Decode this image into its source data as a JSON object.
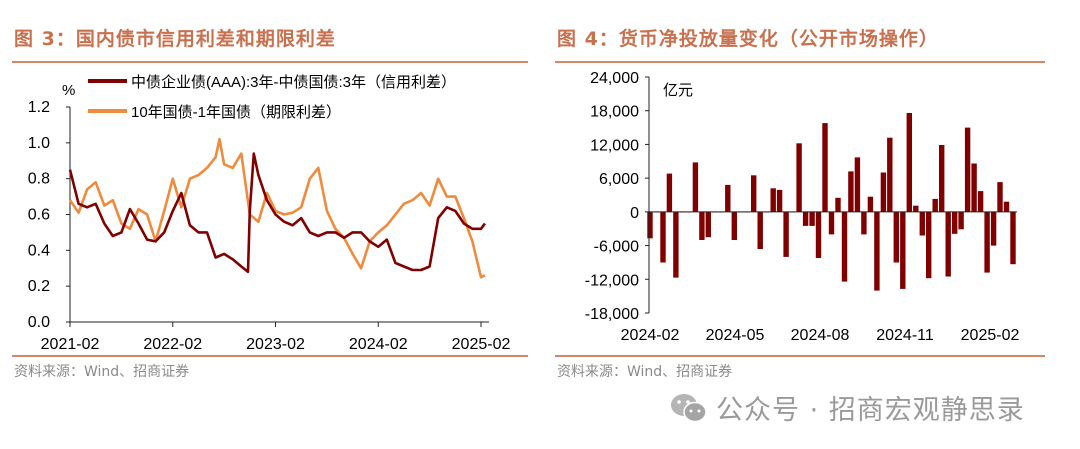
{
  "left": {
    "title": "图 3：国内债市信用利差和期限利差",
    "source": "资料来源：Wind、招商证券"
  },
  "right": {
    "title": "图 4：货币净投放量变化（公开市场操作）",
    "source": "资料来源：Wind、招商证券"
  },
  "watermark": {
    "icon": "wechat-icon",
    "text": "公众号 · 招商宏观静思录"
  },
  "chart_data": [
    {
      "type": "line",
      "ylabel": "%",
      "ylim": [
        0,
        1.2
      ],
      "yticks": [
        "0.0",
        "0.2",
        "0.4",
        "0.6",
        "0.8",
        "1.0",
        "1.2"
      ],
      "xticks": [
        "2021-02",
        "2022-02",
        "2023-02",
        "2024-02",
        "2025-02"
      ],
      "xlim": [
        "2021-02",
        "2025-02"
      ],
      "grid": false,
      "legend": "top",
      "series": [
        {
          "name": "中债企业债(AAA):3年-中债国债:3年（信用利差）",
          "color": "#800000",
          "points": [
            [
              "2021-02-01",
              0.85
            ],
            [
              "2021-03-01",
              0.66
            ],
            [
              "2021-04-01",
              0.64
            ],
            [
              "2021-05-01",
              0.66
            ],
            [
              "2021-06-01",
              0.55
            ],
            [
              "2021-07-01",
              0.48
            ],
            [
              "2021-08-01",
              0.5
            ],
            [
              "2021-09-01",
              0.63
            ],
            [
              "2021-10-01",
              0.55
            ],
            [
              "2021-11-01",
              0.46
            ],
            [
              "2021-12-01",
              0.45
            ],
            [
              "2022-01-01",
              0.5
            ],
            [
              "2022-02-01",
              0.62
            ],
            [
              "2022-03-01",
              0.72
            ],
            [
              "2022-04-01",
              0.54
            ],
            [
              "2022-05-01",
              0.5
            ],
            [
              "2022-06-01",
              0.5
            ],
            [
              "2022-07-01",
              0.36
            ],
            [
              "2022-08-01",
              0.38
            ],
            [
              "2022-09-01",
              0.35
            ],
            [
              "2022-10-01",
              0.31
            ],
            [
              "2022-10-25",
              0.28
            ],
            [
              "2022-11-01",
              0.62
            ],
            [
              "2022-11-15",
              0.94
            ],
            [
              "2022-12-01",
              0.82
            ],
            [
              "2023-01-01",
              0.68
            ],
            [
              "2023-02-01",
              0.6
            ],
            [
              "2023-03-01",
              0.56
            ],
            [
              "2023-04-01",
              0.54
            ],
            [
              "2023-05-01",
              0.58
            ],
            [
              "2023-06-01",
              0.5
            ],
            [
              "2023-07-01",
              0.48
            ],
            [
              "2023-08-01",
              0.5
            ],
            [
              "2023-09-01",
              0.5
            ],
            [
              "2023-10-01",
              0.47
            ],
            [
              "2023-11-01",
              0.5
            ],
            [
              "2023-12-01",
              0.5
            ],
            [
              "2024-01-01",
              0.45
            ],
            [
              "2024-02-01",
              0.42
            ],
            [
              "2024-03-01",
              0.46
            ],
            [
              "2024-04-01",
              0.33
            ],
            [
              "2024-05-01",
              0.31
            ],
            [
              "2024-06-01",
              0.29
            ],
            [
              "2024-07-01",
              0.29
            ],
            [
              "2024-08-01",
              0.31
            ],
            [
              "2024-09-01",
              0.58
            ],
            [
              "2024-10-01",
              0.64
            ],
            [
              "2024-11-01",
              0.62
            ],
            [
              "2024-12-01",
              0.55
            ],
            [
              "2025-01-01",
              0.52
            ],
            [
              "2025-02-01",
              0.52
            ],
            [
              "2025-02-15",
              0.55
            ]
          ]
        },
        {
          "name": "10年国债-1年国债（期限利差）",
          "color": "#f08a3c",
          "points": [
            [
              "2021-02-01",
              0.68
            ],
            [
              "2021-03-01",
              0.61
            ],
            [
              "2021-04-01",
              0.74
            ],
            [
              "2021-05-01",
              0.78
            ],
            [
              "2021-06-01",
              0.65
            ],
            [
              "2021-07-01",
              0.68
            ],
            [
              "2021-08-01",
              0.55
            ],
            [
              "2021-09-01",
              0.52
            ],
            [
              "2021-10-01",
              0.63
            ],
            [
              "2021-11-01",
              0.6
            ],
            [
              "2021-12-01",
              0.45
            ],
            [
              "2022-01-01",
              0.62
            ],
            [
              "2022-02-01",
              0.8
            ],
            [
              "2022-03-01",
              0.64
            ],
            [
              "2022-04-01",
              0.8
            ],
            [
              "2022-05-01",
              0.82
            ],
            [
              "2022-06-01",
              0.86
            ],
            [
              "2022-07-01",
              0.92
            ],
            [
              "2022-07-15",
              1.02
            ],
            [
              "2022-08-01",
              0.88
            ],
            [
              "2022-09-01",
              0.86
            ],
            [
              "2022-10-01",
              0.94
            ],
            [
              "2022-11-01",
              0.6
            ],
            [
              "2022-12-01",
              0.56
            ],
            [
              "2023-01-01",
              0.72
            ],
            [
              "2023-02-01",
              0.62
            ],
            [
              "2023-03-01",
              0.6
            ],
            [
              "2023-04-01",
              0.61
            ],
            [
              "2023-05-01",
              0.64
            ],
            [
              "2023-06-01",
              0.8
            ],
            [
              "2023-07-01",
              0.86
            ],
            [
              "2023-08-01",
              0.62
            ],
            [
              "2023-09-01",
              0.52
            ],
            [
              "2023-10-01",
              0.47
            ],
            [
              "2023-11-01",
              0.38
            ],
            [
              "2023-12-01",
              0.3
            ],
            [
              "2024-01-01",
              0.45
            ],
            [
              "2024-02-01",
              0.5
            ],
            [
              "2024-03-01",
              0.54
            ],
            [
              "2024-04-01",
              0.6
            ],
            [
              "2024-05-01",
              0.66
            ],
            [
              "2024-06-01",
              0.68
            ],
            [
              "2024-07-01",
              0.72
            ],
            [
              "2024-08-01",
              0.65
            ],
            [
              "2024-09-01",
              0.8
            ],
            [
              "2024-10-01",
              0.7
            ],
            [
              "2024-11-01",
              0.7
            ],
            [
              "2024-12-01",
              0.58
            ],
            [
              "2025-01-01",
              0.45
            ],
            [
              "2025-02-01",
              0.25
            ],
            [
              "2025-02-15",
              0.26
            ]
          ]
        }
      ]
    },
    {
      "type": "bar",
      "ylabel": "亿元",
      "ylim": [
        -18000,
        24000
      ],
      "yticks": [
        "-18,000",
        "-12,000",
        "-6,000",
        "0",
        "6,000",
        "12,000",
        "18,000",
        "24,000"
      ],
      "xticks": [
        "2024-02",
        "2024-05",
        "2024-08",
        "2024-11",
        "2025-02"
      ],
      "grid": false,
      "color": "#800000",
      "values": [
        -4700,
        0,
        -9000,
        6800,
        -11700,
        0,
        0,
        8800,
        -5000,
        -4500,
        0,
        0,
        4800,
        -5000,
        0,
        0,
        6500,
        -6600,
        0,
        4200,
        3900,
        -8000,
        0,
        12200,
        -2500,
        -2500,
        -8200,
        15800,
        -4000,
        2500,
        -12400,
        7200,
        9700,
        -4000,
        2700,
        -14000,
        7000,
        13200,
        -9000,
        -13700,
        17600,
        1100,
        -4200,
        -11800,
        2300,
        11900,
        -11500,
        -3900,
        -3100,
        15000,
        8600,
        3700,
        -10800,
        -6000,
        5300,
        1800,
        -9300
      ]
    }
  ]
}
